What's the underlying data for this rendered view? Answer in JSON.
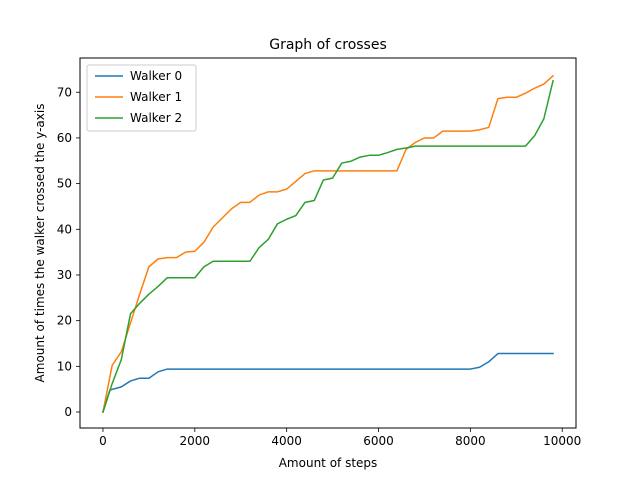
{
  "chart_data": {
    "type": "line",
    "title": "Graph of crosses",
    "xlabel": "Amount of steps",
    "ylabel": "Amount of times the walker crossed the y-axis",
    "xlim": [
      -500,
      10300
    ],
    "ylim": [
      -3.5,
      77.5
    ],
    "xticks": [
      0,
      2000,
      4000,
      6000,
      8000,
      10000
    ],
    "yticks": [
      0,
      10,
      20,
      30,
      40,
      50,
      60,
      70
    ],
    "grid": false,
    "legend": "top-left",
    "series": [
      {
        "name": "Walker 0",
        "color": "#1f77b4",
        "x": [
          0,
          150,
          400,
          600,
          800,
          1000,
          1200,
          1400,
          1600,
          2000,
          4000,
          6000,
          7000,
          8000,
          8200,
          8400,
          8600,
          8800,
          9000,
          9200,
          9400,
          9600,
          9800
        ],
        "y": [
          0,
          4.8,
          5.5,
          6.8,
          7.4,
          7.4,
          8.8,
          9.4,
          9.4,
          9.4,
          9.4,
          9.4,
          9.4,
          9.4,
          9.8,
          11,
          12.8,
          12.8,
          12.8,
          12.8,
          12.8,
          12.8,
          12.8
        ]
      },
      {
        "name": "Walker 1",
        "color": "#ff7f0e",
        "x": [
          0,
          200,
          400,
          600,
          800,
          1000,
          1200,
          1400,
          1600,
          1800,
          2000,
          2200,
          2400,
          2600,
          2800,
          3000,
          3200,
          3400,
          3600,
          3800,
          4000,
          4200,
          4400,
          4600,
          4800,
          5000,
          5200,
          5400,
          5600,
          5800,
          6000,
          6200,
          6400,
          6600,
          6800,
          7000,
          7200,
          7400,
          7600,
          7800,
          8000,
          8200,
          8400,
          8600,
          8800,
          9000,
          9200,
          9400,
          9600,
          9800
        ],
        "y": [
          0,
          10.2,
          13.2,
          19.5,
          25.8,
          31.8,
          33.5,
          33.8,
          33.8,
          35,
          35.2,
          37.2,
          40.5,
          42.5,
          44.5,
          45.9,
          45.9,
          47.5,
          48.2,
          48.2,
          48.8,
          50.5,
          52.2,
          52.8,
          52.8,
          52.8,
          52.8,
          52.8,
          52.8,
          52.8,
          52.8,
          52.8,
          52.8,
          57.5,
          59,
          60,
          60,
          61.5,
          61.5,
          61.5,
          61.5,
          61.8,
          62.3,
          68.6,
          68.9,
          68.9,
          69.8,
          70.9,
          71.8,
          73.6
        ]
      },
      {
        "name": "Walker 2",
        "color": "#2ca02c",
        "x": [
          0,
          200,
          400,
          600,
          800,
          1000,
          1200,
          1400,
          1600,
          1800,
          2000,
          2200,
          2400,
          2600,
          2800,
          3000,
          3200,
          3400,
          3600,
          3800,
          4000,
          4200,
          4400,
          4600,
          4800,
          5000,
          5200,
          5400,
          5600,
          5800,
          6000,
          6200,
          6400,
          6600,
          6800,
          7000,
          7200,
          7400,
          7600,
          7800,
          8000,
          8200,
          8400,
          8600,
          8800,
          9000,
          9200,
          9400,
          9600,
          9800
        ],
        "y": [
          0,
          6.2,
          11.5,
          21.5,
          23.8,
          25.8,
          27.5,
          29.4,
          29.4,
          29.4,
          29.4,
          31.8,
          33,
          33,
          33,
          33,
          33,
          36,
          37.8,
          41.2,
          42.2,
          43,
          45.9,
          46.3,
          50.8,
          51.2,
          54.5,
          54.9,
          55.8,
          56.2,
          56.2,
          56.8,
          57.5,
          57.8,
          58.2,
          58.2,
          58.2,
          58.2,
          58.2,
          58.2,
          58.2,
          58.2,
          58.2,
          58.2,
          58.2,
          58.2,
          58.2,
          60.5,
          64.2,
          72.5
        ]
      }
    ]
  }
}
